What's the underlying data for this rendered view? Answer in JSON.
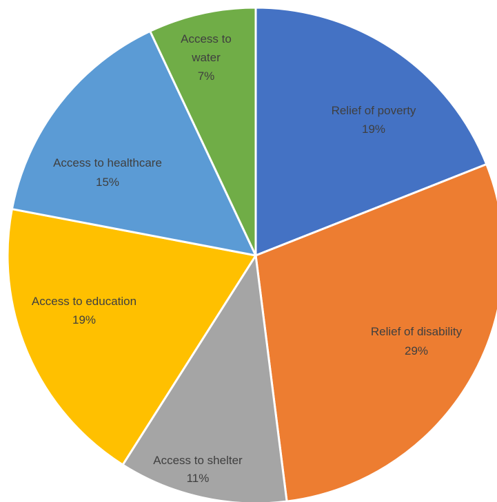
{
  "chart_data": {
    "type": "pie",
    "title": "",
    "slices": [
      {
        "label": "Relief of poverty",
        "value": 19,
        "value_label": "19%",
        "color": "#4472C4"
      },
      {
        "label": "Relief of disability",
        "value": 29,
        "value_label": "29%",
        "color": "#ED7D31"
      },
      {
        "label": "Access to shelter",
        "value": 11,
        "value_label": "11%",
        "color": "#A5A5A5"
      },
      {
        "label": "Access to education",
        "value": 19,
        "value_label": "19%",
        "color": "#FFC000"
      },
      {
        "label": "Access to healthcare",
        "value": 15,
        "value_label": "15%",
        "color": "#5B9BD5"
      },
      {
        "label": "Access to water",
        "value": 7,
        "value_label": "7%",
        "color": "#70AD47"
      }
    ],
    "start_angle": "12 o'clock",
    "direction": "clockwise",
    "legend": "none",
    "data_labels": "inside"
  }
}
